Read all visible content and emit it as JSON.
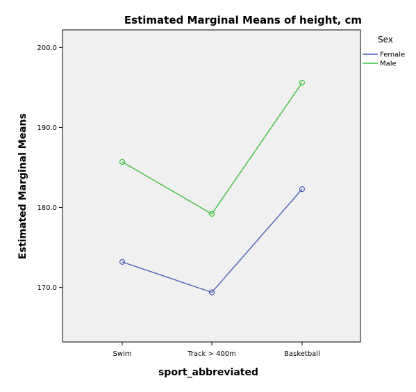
{
  "chart_data": {
    "type": "line",
    "title": "Estimated Marginal Means of height, cm",
    "xlabel": "sport_abbreviated",
    "ylabel": "Estimated Marginal Means",
    "categories": [
      "Swim",
      "Track > 400m",
      "Basketball"
    ],
    "ylim": [
      163.2,
      202.2
    ],
    "yticks": [
      170,
      180,
      190,
      200
    ],
    "ytick_labels": [
      "170.0",
      "180.0",
      "190.0",
      "200.0"
    ],
    "legend": {
      "title": "Sex",
      "placement": "right"
    },
    "series": [
      {
        "name": "Female",
        "color": "#4a5fb4",
        "values": [
          173.2,
          169.4,
          182.3
        ]
      },
      {
        "name": "Male",
        "color": "#3dbf3d",
        "values": [
          185.7,
          179.2,
          195.6
        ]
      }
    ],
    "plot_background": "#f0f0f0",
    "grid": false
  }
}
